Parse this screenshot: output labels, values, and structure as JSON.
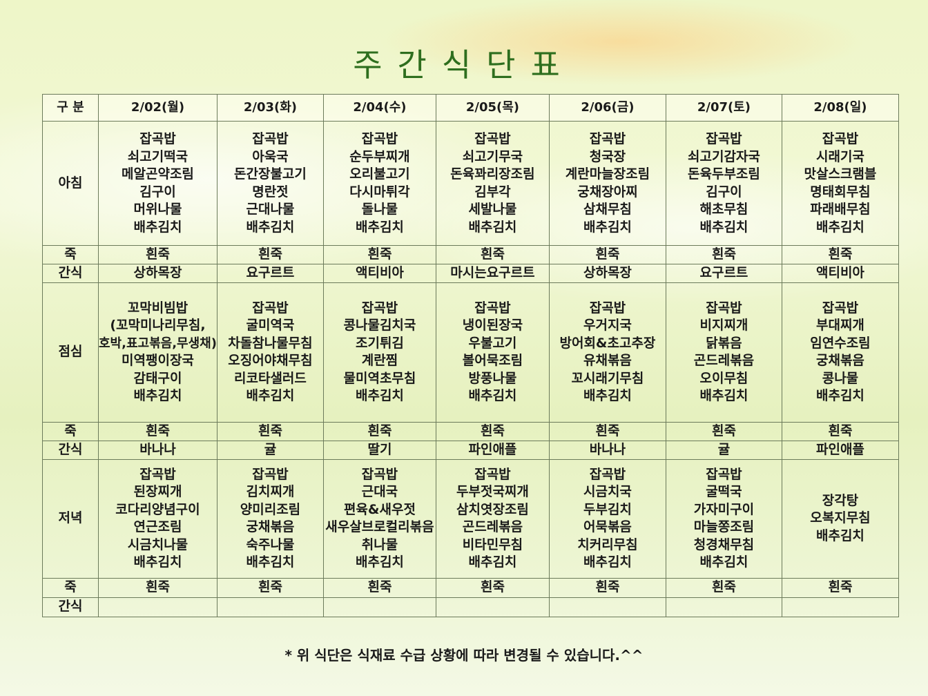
{
  "title": "주간식단표",
  "header": [
    "구 분",
    "2/02(월)",
    "2/03(화)",
    "2/04(수)",
    "2/05(목)",
    "2/06(금)",
    "2/07(토)",
    "2/08(일)"
  ],
  "rows": [
    {
      "label": "아침",
      "cells": [
        [
          "잡곡밥",
          "쇠고기떡국",
          "메알곤약조림",
          "김구이",
          "머위나물",
          "배추김치"
        ],
        [
          "잡곡밥",
          "아욱국",
          "돈간장불고기",
          "명란젓",
          "근대나물",
          "배추김치"
        ],
        [
          "잡곡밥",
          "순두부찌개",
          "오리불고기",
          "다시마튀각",
          "돌나물",
          "배추김치"
        ],
        [
          "잡곡밥",
          "쇠고기무국",
          "돈육꽈리장조림",
          "김부각",
          "세발나물",
          "배추김치"
        ],
        [
          "잡곡밥",
          "청국장",
          "계란마늘장조림",
          "궁채장아찌",
          "삼채무침",
          "배추김치"
        ],
        [
          "잡곡밥",
          "쇠고기감자국",
          "돈육두부조림",
          "김구이",
          "해초무침",
          "배추김치"
        ],
        [
          "잡곡밥",
          "시래기국",
          "맛살스크램블",
          "명태회무침",
          "파래배무침",
          "배추김치"
        ]
      ]
    },
    {
      "label": "죽",
      "cells": [
        [
          "흰죽"
        ],
        [
          "흰죽"
        ],
        [
          "흰죽"
        ],
        [
          "흰죽"
        ],
        [
          "흰죽"
        ],
        [
          "흰죽"
        ],
        [
          "흰죽"
        ]
      ]
    },
    {
      "label": "간식",
      "cells": [
        [
          "상하목장"
        ],
        [
          "요구르트"
        ],
        [
          "액티비아"
        ],
        [
          "마시는요구르트"
        ],
        [
          "상하목장"
        ],
        [
          "요구르트"
        ],
        [
          "액티비아"
        ]
      ]
    },
    {
      "label": "점심",
      "cells": [
        [
          "꼬막비빔밥",
          "(꼬막미나리무침,",
          "호박,표고볶음,무생채)",
          "미역팽이장국",
          "감태구이",
          "배추김치"
        ],
        [
          "잡곡밥",
          "굴미역국",
          "차돌참나물무침",
          "오징어야채무침",
          "리코타샐러드",
          "배추김치"
        ],
        [
          "잡곡밥",
          "콩나물김치국",
          "조기튀김",
          "계란찜",
          "물미역초무침",
          "배추김치"
        ],
        [
          "잡곡밥",
          "냉이된장국",
          "우불고기",
          "볼어묵조림",
          "방풍나물",
          "배추김치"
        ],
        [
          "잡곡밥",
          "우거지국",
          "방어회&초고추장",
          "유채볶음",
          "꼬시래기무침",
          "배추김치"
        ],
        [
          "잡곡밥",
          "비지찌개",
          "닭볶음",
          "곤드레볶음",
          "오이무침",
          "배추김치"
        ],
        [
          "잡곡밥",
          "부대찌개",
          "임연수조림",
          "궁채볶음",
          "콩나물",
          "배추김치"
        ]
      ]
    },
    {
      "label": "죽",
      "cells": [
        [
          "흰죽"
        ],
        [
          "흰죽"
        ],
        [
          "흰죽"
        ],
        [
          "흰죽"
        ],
        [
          "흰죽"
        ],
        [
          "흰죽"
        ],
        [
          "흰죽"
        ]
      ]
    },
    {
      "label": "간식",
      "cells": [
        [
          "바나나"
        ],
        [
          "귤"
        ],
        [
          "딸기"
        ],
        [
          "파인애플"
        ],
        [
          "바나나"
        ],
        [
          "귤"
        ],
        [
          "파인애플"
        ]
      ]
    },
    {
      "label": "저녁",
      "cells": [
        [
          "잡곡밥",
          "된장찌개",
          "코다리양념구이",
          "연근조림",
          "시금치나물",
          "배추김치"
        ],
        [
          "잡곡밥",
          "김치찌개",
          "양미리조림",
          "궁채볶음",
          "숙주나물",
          "배추김치"
        ],
        [
          "잡곡밥",
          "근대국",
          "편육&새우젓",
          "새우살브로컬리볶음",
          "취나물",
          "배추김치"
        ],
        [
          "잡곡밥",
          "두부젓국찌개",
          "삼치엿장조림",
          "곤드레볶음",
          "비타민무침",
          "배추김치"
        ],
        [
          "잡곡밥",
          "시금치국",
          "두부김치",
          "어묵볶음",
          "치커리무침",
          "배추김치"
        ],
        [
          "잡곡밥",
          "굴떡국",
          "가자미구이",
          "마늘쫑조림",
          "청경채무침",
          "배추김치"
        ],
        [
          "장각탕",
          "오복지무침",
          "배추김치"
        ]
      ]
    },
    {
      "label": "죽",
      "cells": [
        [
          "흰죽"
        ],
        [
          "흰죽"
        ],
        [
          "흰죽"
        ],
        [
          "흰죽"
        ],
        [
          "흰죽"
        ],
        [
          "흰죽"
        ],
        [
          "흰죽"
        ]
      ]
    },
    {
      "label": "간식",
      "cells": [
        [],
        [],
        [],
        [],
        [],
        [],
        []
      ]
    }
  ],
  "footer": "* 위 식단은 식재료 수급 상황에 따라 변경될 수 있습니다.^^",
  "colors": {
    "title": "#2e6e1e",
    "border": "#6b7a5a"
  }
}
